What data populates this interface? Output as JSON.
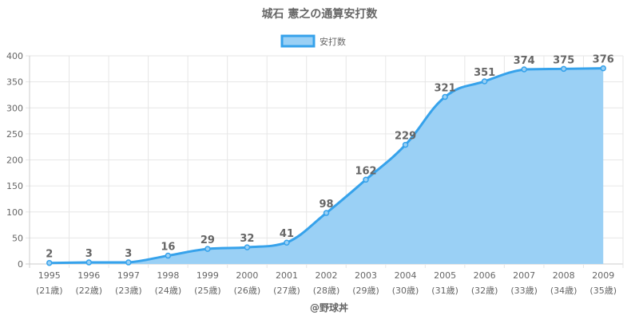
{
  "title": "城石 憲之の通算安打数",
  "footer": "@野球丼",
  "colors": {
    "line": "#36a2eb",
    "fill": "#9ad0f5"
  },
  "chart_data": {
    "type": "area",
    "title": "城石 憲之の通算安打数",
    "categories": [
      "1995",
      "1996",
      "1997",
      "1998",
      "1999",
      "2000",
      "2001",
      "2002",
      "2003",
      "2004",
      "2005",
      "2006",
      "2007",
      "2008",
      "2009"
    ],
    "category_sublabels": [
      "(21歳)",
      "(22歳)",
      "(23歳)",
      "(24歳)",
      "(25歳)",
      "(26歳)",
      "(27歳)",
      "(28歳)",
      "(29歳)",
      "(30歳)",
      "(31歳)",
      "(32歳)",
      "(33歳)",
      "(34歳)",
      "(35歳)"
    ],
    "series": [
      {
        "name": "安打数",
        "values": [
          2,
          3,
          3,
          16,
          29,
          32,
          41,
          98,
          162,
          229,
          321,
          351,
          374,
          375,
          376
        ]
      }
    ],
    "ylim": [
      0,
      400
    ],
    "yticks": [
      0,
      50,
      100,
      150,
      200,
      250,
      300,
      350,
      400
    ],
    "grid": true,
    "legend": "top-center"
  }
}
